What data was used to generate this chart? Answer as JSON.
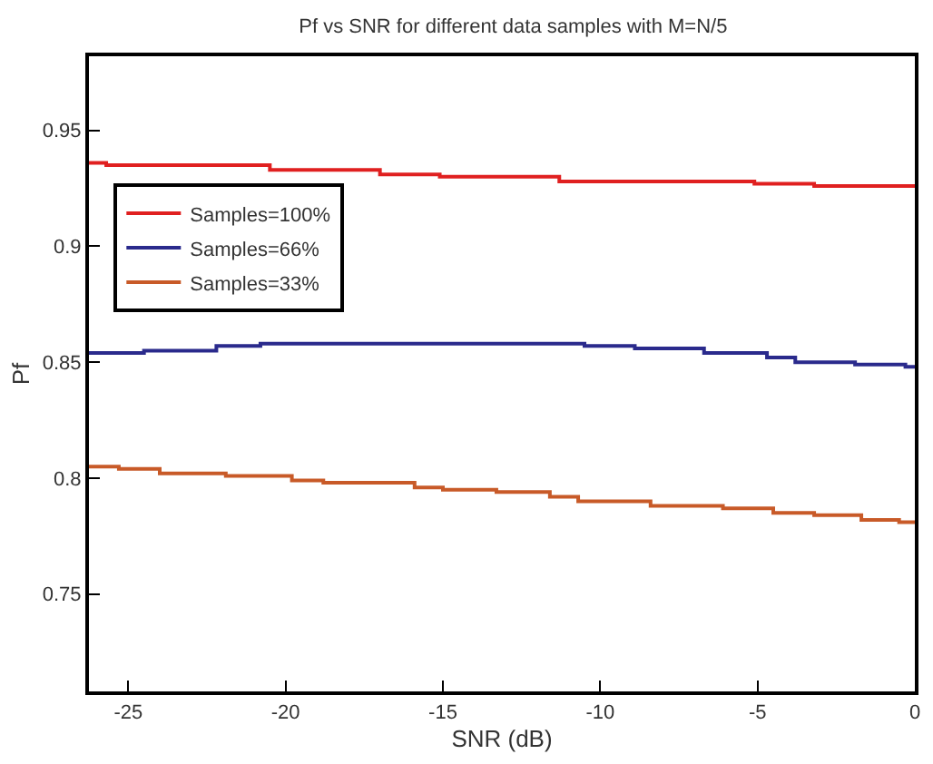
{
  "chart_data": {
    "type": "step",
    "title": "Pf vs SNR for different data samples with M=N/5",
    "xlabel": "SNR (dB)",
    "ylabel": "Pf",
    "xlim": [
      -26.25,
      0
    ],
    "xticks": [
      -25,
      -20,
      -15,
      -10,
      -5,
      0
    ],
    "ylim": [
      0.708,
      0.982
    ],
    "yticks": [
      0.75,
      0.8,
      0.85,
      0.9,
      0.95
    ],
    "grid": false,
    "legend": "top left",
    "line_style": "solid",
    "marker": "none",
    "series": [
      {
        "name": "Samples=100%",
        "color": "#e02020",
        "x": [
          -26.25,
          -25.7,
          -20.5,
          -17.0,
          -15.1,
          -11.3,
          -5.1,
          -3.2,
          0
        ],
        "values": [
          0.936,
          0.935,
          0.933,
          0.931,
          0.93,
          0.928,
          0.927,
          0.926,
          0.926
        ]
      },
      {
        "name": "Samples=66%",
        "color": "#2a2a8c",
        "x": [
          -26.25,
          -24.5,
          -22.2,
          -20.8,
          -10.5,
          -8.9,
          -6.7,
          -4.7,
          -3.8,
          -1.9,
          -0.3,
          0
        ],
        "values": [
          0.854,
          0.855,
          0.857,
          0.858,
          0.857,
          0.856,
          0.854,
          0.852,
          0.85,
          0.849,
          0.848,
          0.848
        ]
      },
      {
        "name": "Samples=33%",
        "color": "#c85a28",
        "x": [
          -26.25,
          -25.3,
          -24.0,
          -21.9,
          -19.8,
          -18.8,
          -15.9,
          -15.0,
          -13.3,
          -11.6,
          -10.7,
          -8.4,
          -6.1,
          -4.5,
          -3.2,
          -1.7,
          -0.5,
          0
        ],
        "values": [
          0.805,
          0.804,
          0.802,
          0.801,
          0.799,
          0.798,
          0.796,
          0.795,
          0.794,
          0.792,
          0.79,
          0.788,
          0.787,
          0.785,
          0.784,
          0.782,
          0.781,
          0.781
        ]
      }
    ]
  }
}
